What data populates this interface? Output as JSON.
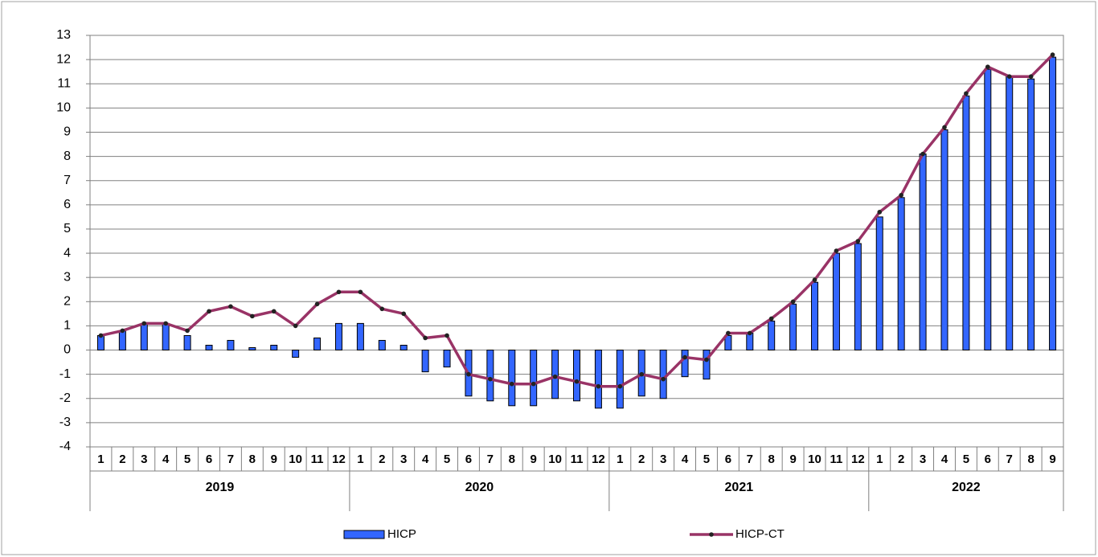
{
  "chart_data": {
    "type": "bar-line",
    "years": [
      {
        "label": "2019",
        "months": [
          "1",
          "2",
          "3",
          "4",
          "5",
          "6",
          "7",
          "8",
          "9",
          "10",
          "11",
          "12"
        ]
      },
      {
        "label": "2020",
        "months": [
          "1",
          "2",
          "3",
          "4",
          "5",
          "6",
          "7",
          "8",
          "9",
          "10",
          "11",
          "12"
        ]
      },
      {
        "label": "2021",
        "months": [
          "1",
          "2",
          "3",
          "4",
          "5",
          "6",
          "7",
          "8",
          "9",
          "10",
          "11",
          "12"
        ]
      },
      {
        "label": "2022",
        "months": [
          "1",
          "2",
          "3",
          "4",
          "5",
          "6",
          "7",
          "8",
          "9"
        ]
      }
    ],
    "series": [
      {
        "name": "HICP",
        "type": "bar",
        "color": "#3366ff",
        "values": [
          0.6,
          0.8,
          1.1,
          1.1,
          0.6,
          0.2,
          0.4,
          0.1,
          0.2,
          -0.3,
          0.5,
          1.1,
          1.1,
          0.4,
          0.2,
          -0.9,
          -0.7,
          -1.9,
          -2.1,
          -2.3,
          -2.3,
          -2.0,
          -2.1,
          -2.4,
          -2.4,
          -1.9,
          -2.0,
          -1.1,
          -1.2,
          0.6,
          0.7,
          1.2,
          1.9,
          2.8,
          4.0,
          4.4,
          5.5,
          6.3,
          8.1,
          9.1,
          10.5,
          11.6,
          11.3,
          11.2,
          12.1
        ]
      },
      {
        "name": "HICP-CT",
        "type": "line",
        "color": "#993366",
        "values": [
          0.6,
          0.8,
          1.1,
          1.1,
          0.8,
          1.6,
          1.8,
          1.4,
          1.6,
          1.0,
          1.9,
          2.4,
          2.4,
          1.7,
          1.5,
          0.5,
          0.6,
          -1.0,
          -1.2,
          -1.4,
          -1.4,
          -1.1,
          -1.3,
          -1.5,
          -1.5,
          -1.0,
          -1.2,
          -0.3,
          -0.4,
          0.7,
          0.7,
          1.3,
          2.0,
          2.9,
          4.1,
          4.5,
          5.7,
          6.4,
          8.1,
          9.2,
          10.6,
          11.7,
          11.3,
          11.3,
          12.2
        ]
      }
    ],
    "ylim": [
      -4,
      13
    ],
    "yticks": [
      -4,
      -3,
      -2,
      -1,
      0,
      1,
      2,
      3,
      4,
      5,
      6,
      7,
      8,
      9,
      10,
      11,
      12,
      13
    ],
    "grid": true,
    "legend": "bottom"
  }
}
